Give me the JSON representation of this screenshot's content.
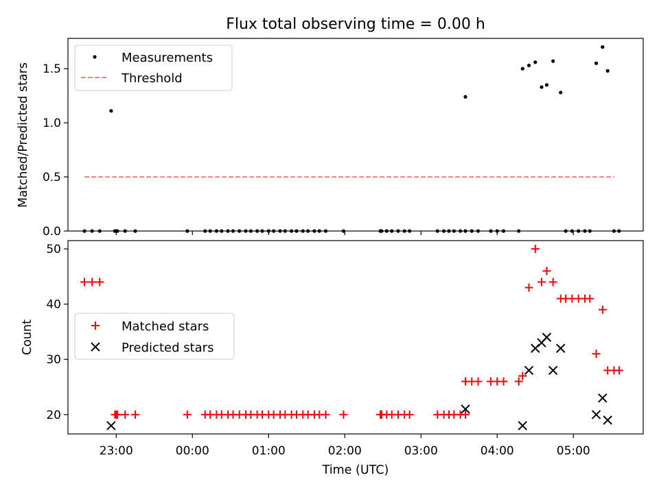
{
  "chart_data": [
    {
      "type": "scatter",
      "title": "Flux total observing time = 0.00 h",
      "xlabel": "",
      "ylabel": "Matched/Predicted stars",
      "ylim": [
        0,
        1.78
      ],
      "yticks": [
        0.0,
        0.5,
        1.0,
        1.5
      ],
      "ytick_labels": [
        "0.0",
        "0.5",
        "1.0",
        "1.5"
      ],
      "xticks_shown_labels": false,
      "legend": {
        "position": "top-left",
        "entries": [
          "Measurements",
          "Threshold"
        ]
      },
      "colors": {
        "measurements": "#000000",
        "threshold": "#ff7f7f"
      },
      "series": [
        {
          "name": "Measurements",
          "marker": "dot",
          "x": [
            "22:35",
            "22:41",
            "22:47",
            "22:56",
            "22:59",
            "23:00",
            "23:01",
            "23:07",
            "23:15",
            "23:56",
            "00:10",
            "00:14",
            "00:19",
            "00:23",
            "00:28",
            "00:32",
            "00:37",
            "00:42",
            "00:46",
            "00:51",
            "00:55",
            "01:00",
            "01:04",
            "01:09",
            "01:13",
            "01:18",
            "01:22",
            "01:27",
            "01:31",
            "01:36",
            "01:40",
            "01:45",
            "01:59",
            "02:28",
            "02:29",
            "02:33",
            "02:37",
            "02:42",
            "02:47",
            "02:51",
            "03:13",
            "03:18",
            "03:22",
            "03:26",
            "03:31",
            "03:35",
            "03:35",
            "03:40",
            "03:45",
            "03:55",
            "04:00",
            "04:05",
            "04:17",
            "04:20",
            "04:25",
            "04:30",
            "04:35",
            "04:39",
            "04:44",
            "04:50",
            "04:54",
            "04:59",
            "05:04",
            "05:09",
            "05:13",
            "05:18",
            "05:23",
            "05:27",
            "05:32",
            "05:36"
          ],
          "y": [
            0,
            0,
            0,
            1.11,
            0,
            0,
            0,
            0,
            0,
            0,
            0,
            0,
            0,
            0,
            0,
            0,
            0,
            0,
            0,
            0,
            0,
            0,
            0,
            0,
            0,
            0,
            0,
            0,
            0,
            0,
            0,
            0,
            0,
            0,
            0,
            0,
            0,
            0,
            0,
            0,
            0,
            0,
            0,
            0,
            0,
            0,
            1.24,
            0,
            0,
            0,
            0,
            0,
            0,
            1.5,
            1.53,
            1.56,
            1.33,
            1.35,
            1.57,
            1.28,
            0,
            0,
            0,
            0,
            0,
            1.55,
            1.7,
            1.48,
            0,
            0
          ]
        },
        {
          "name": "Threshold",
          "marker": "dashed-line",
          "x": [
            "22:35",
            "05:32"
          ],
          "y": [
            0.5,
            0.5
          ]
        }
      ]
    },
    {
      "type": "scatter",
      "title": "",
      "xlabel": "Time (UTC)",
      "ylabel": "Count",
      "ylim": [
        16.5,
        51.5
      ],
      "yticks": [
        20,
        30,
        40,
        50
      ],
      "ytick_labels": [
        "20",
        "30",
        "40",
        "50"
      ],
      "xlim": [
        "22:22",
        "05:55"
      ],
      "xticks": [
        "23:00",
        "00:00",
        "01:00",
        "02:00",
        "03:00",
        "04:00",
        "05:00"
      ],
      "xtick_labels": [
        "23:00",
        "00:00",
        "01:00",
        "02:00",
        "03:00",
        "04:00",
        "05:00"
      ],
      "legend": {
        "position": "center-left",
        "entries": [
          "Matched stars",
          "Predicted stars"
        ]
      },
      "colors": {
        "matched": "#ff0000",
        "predicted": "#000000"
      },
      "series": [
        {
          "name": "Matched stars",
          "marker": "plus",
          "x": [
            "22:35",
            "22:41",
            "22:47",
            "22:59",
            "23:00",
            "23:01",
            "23:07",
            "23:15",
            "23:56",
            "00:10",
            "00:14",
            "00:19",
            "00:23",
            "00:28",
            "00:32",
            "00:37",
            "00:42",
            "00:46",
            "00:51",
            "00:55",
            "01:00",
            "01:04",
            "01:09",
            "01:13",
            "01:18",
            "01:22",
            "01:27",
            "01:31",
            "01:36",
            "01:40",
            "01:45",
            "01:59",
            "02:28",
            "02:29",
            "02:33",
            "02:37",
            "02:42",
            "02:47",
            "02:51",
            "03:13",
            "03:18",
            "03:22",
            "03:26",
            "03:31",
            "03:35",
            "03:35",
            "03:40",
            "03:45",
            "03:55",
            "04:00",
            "04:05",
            "04:17",
            "04:20",
            "04:25",
            "04:30",
            "04:35",
            "04:39",
            "04:44",
            "04:50",
            "04:54",
            "04:59",
            "05:04",
            "05:09",
            "05:13",
            "05:18",
            "05:23",
            "05:27",
            "05:32",
            "05:36"
          ],
          "y": [
            44,
            44,
            44,
            20,
            20,
            20,
            20,
            20,
            20,
            20,
            20,
            20,
            20,
            20,
            20,
            20,
            20,
            20,
            20,
            20,
            20,
            20,
            20,
            20,
            20,
            20,
            20,
            20,
            20,
            20,
            20,
            20,
            20,
            20,
            20,
            20,
            20,
            20,
            20,
            20,
            20,
            20,
            20,
            20,
            20,
            26,
            26,
            26,
            26,
            26,
            26,
            26,
            27,
            43,
            50,
            44,
            46,
            44,
            41,
            41,
            41,
            41,
            41,
            41,
            31,
            39,
            28,
            28,
            28
          ]
        },
        {
          "name": "Predicted stars",
          "marker": "x",
          "x": [
            "22:56",
            "03:35",
            "04:20",
            "04:25",
            "04:30",
            "04:35",
            "04:39",
            "04:44",
            "04:50",
            "05:18",
            "05:23",
            "05:27"
          ],
          "y": [
            18,
            21,
            18,
            28,
            32,
            33,
            34,
            28,
            32,
            20,
            23,
            19
          ]
        }
      ]
    }
  ]
}
